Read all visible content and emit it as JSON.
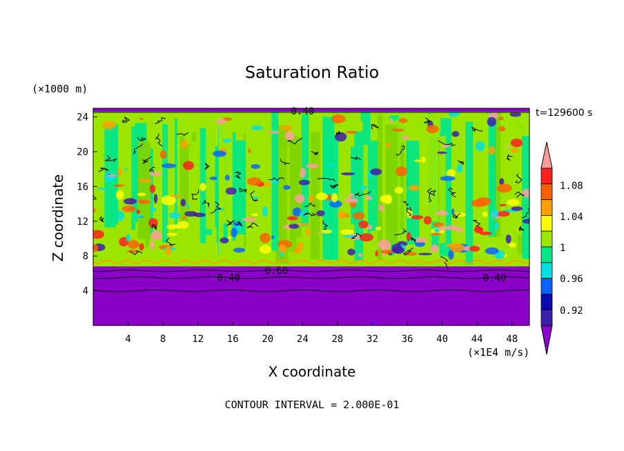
{
  "chart_data": {
    "type": "heatmap",
    "title": "Saturation Ratio",
    "xlabel": "X coordinate",
    "ylabel": "Z coordinate",
    "x_unit": "(×1E4 m/s)",
    "y_unit": "(×1000 m)",
    "time_label": "t=129600 s",
    "footer": "CONTOUR INTERVAL = 2.000E-01",
    "xlim": [
      0,
      50
    ],
    "ylim": [
      0,
      25
    ],
    "x_ticks": [
      "4",
      "8",
      "12",
      "16",
      "20",
      "24",
      "28",
      "32",
      "36",
      "40",
      "44",
      "48"
    ],
    "x_tick_values": [
      4,
      8,
      12,
      16,
      20,
      24,
      28,
      32,
      36,
      40,
      44,
      48
    ],
    "y_ticks": [
      "4",
      "8",
      "12",
      "16",
      "20",
      "24"
    ],
    "y_tick_values": [
      4,
      8,
      12,
      16,
      20,
      24
    ],
    "contour_labels": [
      {
        "text": "0.40",
        "x": 15.5,
        "y": 5.5
      },
      {
        "text": "0.60",
        "x": 21.0,
        "y": 6.3
      },
      {
        "text": "0.40",
        "x": 46.0,
        "y": 5.5
      },
      {
        "text": "0.40",
        "x": 24.0,
        "y": 24.7
      }
    ],
    "colorbar": {
      "levels": [
        "0.92",
        "0.96",
        "1",
        "1.04",
        "1.08"
      ],
      "level_values": [
        0.92,
        0.96,
        1.0,
        1.04,
        1.08
      ],
      "colors": [
        "#8b00c8",
        "#3d1fae",
        "#0a0ab4",
        "#0a64ff",
        "#00e0e0",
        "#00e58a",
        "#9be600",
        "#ffff00",
        "#ffa000",
        "#ff6000",
        "#ff2020",
        "#ff9d9d"
      ]
    },
    "fields": {
      "dry_layer_color": "#8b00c8",
      "dry_layer_top": 6.8
    }
  }
}
